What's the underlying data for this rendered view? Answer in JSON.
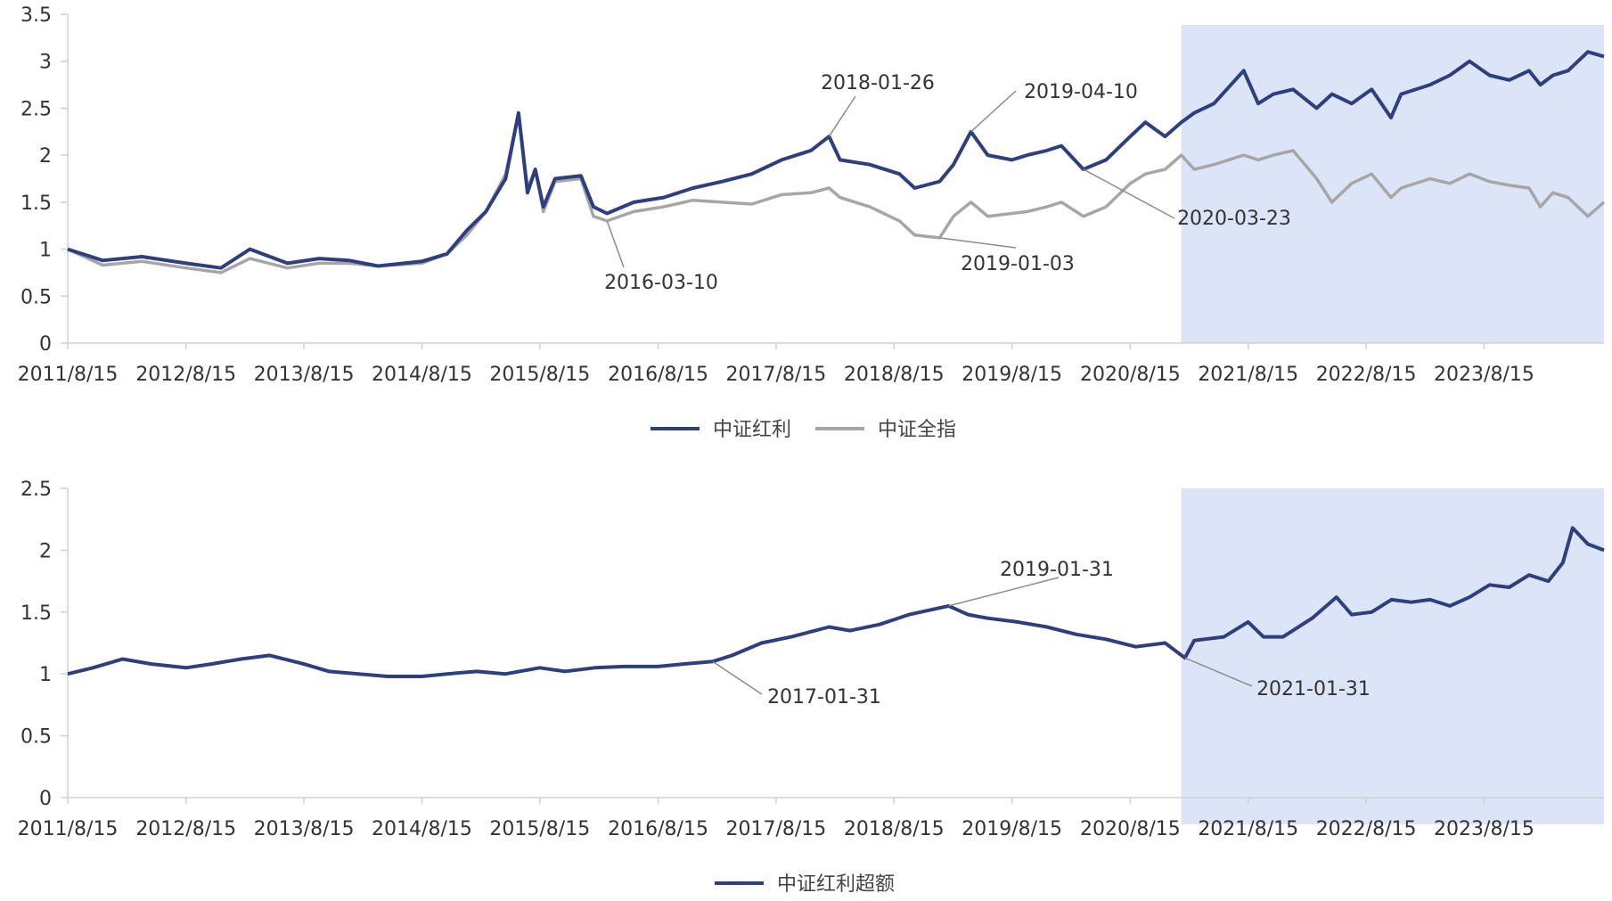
{
  "colors": {
    "primary": "#2e3f7e",
    "secondary": "#a6a6a6",
    "highlight": "#dbe5f7",
    "axis": "#d0d0d0"
  },
  "chart_data": [
    {
      "type": "line",
      "title": "",
      "xlabel": "",
      "ylabel": "",
      "x_tick_labels": [
        "2011/8/15",
        "2012/8/15",
        "2013/8/15",
        "2014/8/15",
        "2015/8/15",
        "2016/8/15",
        "2017/8/15",
        "2018/8/15",
        "2019/8/15",
        "2020/8/15",
        "2021/8/15",
        "2022/8/15",
        "2023/8/15"
      ],
      "y_tick_labels": [
        "0",
        "0.5",
        "1",
        "1.5",
        "2",
        "2.5",
        "3",
        "3.5"
      ],
      "ylim": [
        0,
        3.5
      ],
      "xlim": [
        "2011-08-15",
        "2024-08-20"
      ],
      "grid": false,
      "legend_position": "bottom-center",
      "highlight_range": [
        "2021-01-20",
        "2024-08-20"
      ],
      "series": [
        {
          "name": "中证红利",
          "color": "#2e3f7e",
          "x": [
            "2011-08-15",
            "2011-12-01",
            "2012-04-01",
            "2012-08-15",
            "2012-12-01",
            "2013-03-01",
            "2013-06-25",
            "2013-10-01",
            "2014-01-01",
            "2014-04-01",
            "2014-08-15",
            "2014-11-01",
            "2015-01-01",
            "2015-03-01",
            "2015-05-01",
            "2015-06-10",
            "2015-07-08",
            "2015-08-01",
            "2015-08-26",
            "2015-10-01",
            "2015-12-20",
            "2016-01-28",
            "2016-03-10",
            "2016-06-01",
            "2016-09-01",
            "2016-12-01",
            "2017-03-01",
            "2017-06-01",
            "2017-09-01",
            "2017-12-01",
            "2018-01-26",
            "2018-03-01",
            "2018-06-01",
            "2018-09-01",
            "2018-10-18",
            "2019-01-03",
            "2019-02-15",
            "2019-04-10",
            "2019-06-01",
            "2019-08-15",
            "2019-10-01",
            "2019-12-01",
            "2020-01-15",
            "2020-03-23",
            "2020-06-01",
            "2020-08-15",
            "2020-10-01",
            "2020-12-01",
            "2021-01-20",
            "2021-03-01",
            "2021-05-01",
            "2021-08-01",
            "2021-09-15",
            "2021-11-01",
            "2022-01-01",
            "2022-03-15",
            "2022-05-01",
            "2022-07-01",
            "2022-09-01",
            "2022-10-31",
            "2022-12-01",
            "2023-03-01",
            "2023-05-01",
            "2023-07-01",
            "2023-09-01",
            "2023-11-01",
            "2024-01-01",
            "2024-02-05",
            "2024-03-15",
            "2024-05-01",
            "2024-07-01",
            "2024-08-20"
          ],
          "values": [
            1.0,
            0.88,
            0.92,
            0.85,
            0.8,
            1.0,
            0.85,
            0.9,
            0.88,
            0.82,
            0.87,
            0.95,
            1.2,
            1.4,
            1.75,
            2.45,
            1.6,
            1.85,
            1.45,
            1.75,
            1.78,
            1.45,
            1.38,
            1.5,
            1.55,
            1.65,
            1.72,
            1.8,
            1.95,
            2.05,
            2.2,
            1.95,
            1.9,
            1.8,
            1.65,
            1.72,
            1.9,
            2.25,
            2.0,
            1.95,
            2.0,
            2.05,
            2.1,
            1.85,
            1.95,
            2.2,
            2.35,
            2.2,
            2.35,
            2.45,
            2.55,
            2.9,
            2.55,
            2.65,
            2.7,
            2.5,
            2.65,
            2.55,
            2.7,
            2.4,
            2.65,
            2.75,
            2.85,
            3.0,
            2.85,
            2.8,
            2.9,
            2.75,
            2.85,
            2.9,
            3.1,
            3.05
          ]
        },
        {
          "name": "中证全指",
          "color": "#a6a6a6",
          "x": [
            "2011-08-15",
            "2011-12-01",
            "2012-04-01",
            "2012-08-15",
            "2012-12-01",
            "2013-03-01",
            "2013-06-25",
            "2013-10-01",
            "2014-01-01",
            "2014-04-01",
            "2014-08-15",
            "2014-11-01",
            "2015-01-01",
            "2015-03-01",
            "2015-05-01",
            "2015-06-10",
            "2015-07-08",
            "2015-08-01",
            "2015-08-26",
            "2015-10-01",
            "2015-12-20",
            "2016-01-28",
            "2016-03-10",
            "2016-06-01",
            "2016-09-01",
            "2016-12-01",
            "2017-03-01",
            "2017-06-01",
            "2017-09-01",
            "2017-12-01",
            "2018-01-26",
            "2018-03-01",
            "2018-06-01",
            "2018-09-01",
            "2018-10-18",
            "2019-01-03",
            "2019-02-15",
            "2019-04-10",
            "2019-06-01",
            "2019-08-15",
            "2019-10-01",
            "2019-12-01",
            "2020-01-15",
            "2020-03-23",
            "2020-06-01",
            "2020-08-15",
            "2020-10-01",
            "2020-12-01",
            "2021-01-20",
            "2021-03-01",
            "2021-05-01",
            "2021-08-01",
            "2021-09-15",
            "2021-11-01",
            "2022-01-01",
            "2022-03-15",
            "2022-05-01",
            "2022-07-01",
            "2022-09-01",
            "2022-10-31",
            "2022-12-01",
            "2023-03-01",
            "2023-05-01",
            "2023-07-01",
            "2023-09-01",
            "2023-11-01",
            "2024-01-01",
            "2024-02-05",
            "2024-03-15",
            "2024-05-01",
            "2024-07-01",
            "2024-08-20"
          ],
          "values": [
            1.0,
            0.83,
            0.87,
            0.8,
            0.75,
            0.9,
            0.8,
            0.85,
            0.85,
            0.82,
            0.85,
            0.95,
            1.15,
            1.4,
            1.8,
            2.45,
            1.65,
            1.85,
            1.4,
            1.72,
            1.75,
            1.35,
            1.3,
            1.4,
            1.45,
            1.52,
            1.5,
            1.48,
            1.58,
            1.6,
            1.65,
            1.55,
            1.45,
            1.3,
            1.15,
            1.12,
            1.35,
            1.5,
            1.35,
            1.38,
            1.4,
            1.45,
            1.5,
            1.35,
            1.45,
            1.7,
            1.8,
            1.85,
            2.0,
            1.85,
            1.9,
            2.0,
            1.95,
            2.0,
            2.05,
            1.75,
            1.5,
            1.7,
            1.8,
            1.55,
            1.65,
            1.75,
            1.7,
            1.8,
            1.72,
            1.68,
            1.65,
            1.45,
            1.6,
            1.55,
            1.35,
            1.5
          ]
        }
      ],
      "annotations": [
        {
          "label": "2016-03-10"
        },
        {
          "label": "2018-01-26"
        },
        {
          "label": "2019-01-03"
        },
        {
          "label": "2019-04-10"
        },
        {
          "label": "2020-03-23"
        }
      ]
    },
    {
      "type": "line",
      "title": "",
      "xlabel": "",
      "ylabel": "",
      "x_tick_labels": [
        "2011/8/15",
        "2012/8/15",
        "2013/8/15",
        "2014/8/15",
        "2015/8/15",
        "2016/8/15",
        "2017/8/15",
        "2018/8/15",
        "2019/8/15",
        "2020/8/15",
        "2021/8/15",
        "2022/8/15",
        "2023/8/15"
      ],
      "y_tick_labels": [
        "0",
        "0.5",
        "1",
        "1.5",
        "2",
        "2.5"
      ],
      "ylim": [
        0,
        2.5
      ],
      "xlim": [
        "2011-08-15",
        "2024-08-20"
      ],
      "grid": false,
      "legend_position": "bottom-center",
      "highlight_range": [
        "2021-01-20",
        "2024-08-20"
      ],
      "series": [
        {
          "name": "中证红利超额",
          "color": "#2e3f7e",
          "x": [
            "2011-08-15",
            "2011-11-01",
            "2012-02-01",
            "2012-05-01",
            "2012-08-15",
            "2012-11-01",
            "2013-02-01",
            "2013-05-01",
            "2013-08-15",
            "2013-11-01",
            "2014-02-01",
            "2014-05-01",
            "2014-08-15",
            "2014-11-01",
            "2015-02-01",
            "2015-05-01",
            "2015-08-15",
            "2015-11-01",
            "2016-02-01",
            "2016-05-01",
            "2016-08-15",
            "2016-11-01",
            "2017-01-31",
            "2017-04-01",
            "2017-07-01",
            "2017-10-01",
            "2018-01-26",
            "2018-04-01",
            "2018-07-01",
            "2018-10-01",
            "2019-01-31",
            "2019-04-01",
            "2019-06-01",
            "2019-09-01",
            "2019-12-01",
            "2020-03-01",
            "2020-06-01",
            "2020-09-01",
            "2020-12-01",
            "2021-01-31",
            "2021-03-01",
            "2021-06-01",
            "2021-08-15",
            "2021-10-01",
            "2021-12-01",
            "2022-03-01",
            "2022-05-15",
            "2022-07-01",
            "2022-09-01",
            "2022-11-01",
            "2023-01-01",
            "2023-03-01",
            "2023-05-01",
            "2023-07-01",
            "2023-09-01",
            "2023-11-01",
            "2024-01-01",
            "2024-03-01",
            "2024-04-15",
            "2024-05-15",
            "2024-07-01",
            "2024-08-20"
          ],
          "values": [
            1.0,
            1.05,
            1.12,
            1.08,
            1.05,
            1.08,
            1.12,
            1.15,
            1.08,
            1.02,
            1.0,
            0.98,
            0.98,
            1.0,
            1.02,
            1.0,
            1.05,
            1.02,
            1.05,
            1.06,
            1.06,
            1.08,
            1.1,
            1.15,
            1.25,
            1.3,
            1.38,
            1.35,
            1.4,
            1.48,
            1.55,
            1.48,
            1.45,
            1.42,
            1.38,
            1.32,
            1.28,
            1.22,
            1.25,
            1.13,
            1.27,
            1.3,
            1.42,
            1.3,
            1.3,
            1.45,
            1.62,
            1.48,
            1.5,
            1.6,
            1.58,
            1.6,
            1.55,
            1.62,
            1.72,
            1.7,
            1.8,
            1.75,
            1.9,
            2.18,
            2.05,
            2.0
          ]
        }
      ],
      "annotations": [
        {
          "label": "2017-01-31"
        },
        {
          "label": "2019-01-31"
        },
        {
          "label": "2021-01-31"
        }
      ]
    }
  ]
}
